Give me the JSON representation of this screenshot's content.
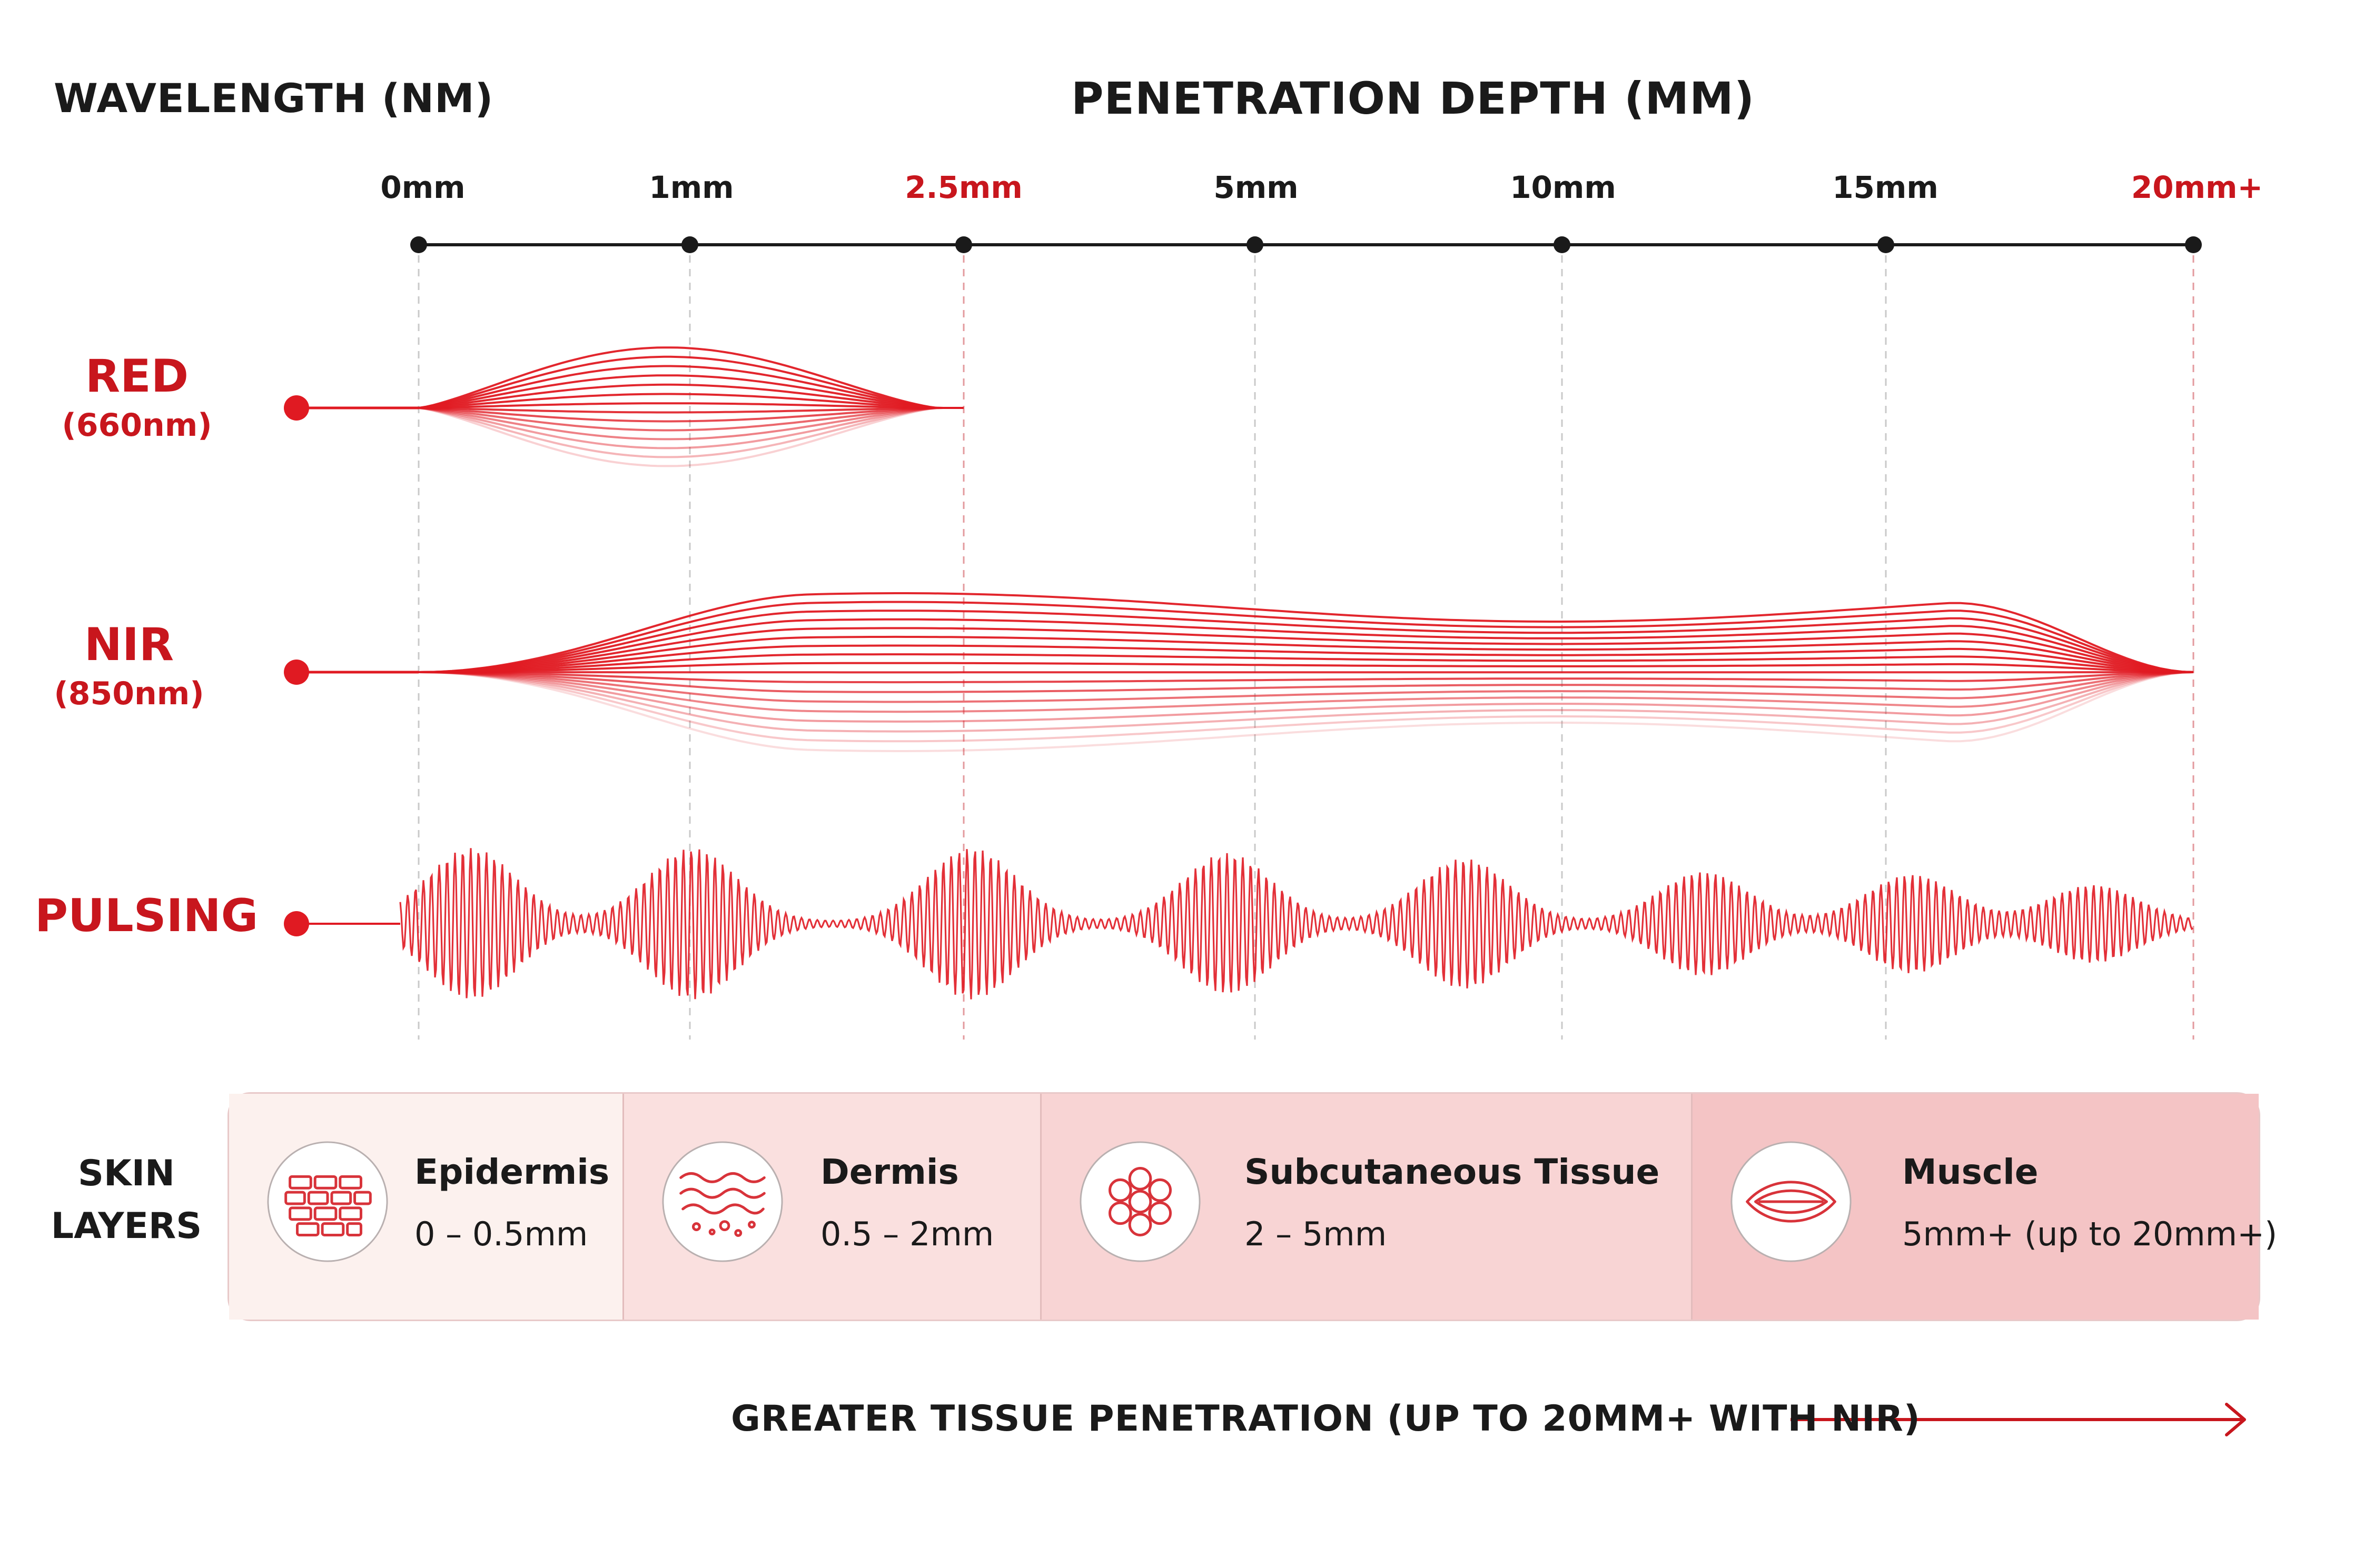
{
  "headers": {
    "wavelength": "WAVELENGTH (NM)",
    "depth": "PENETRATION DEPTH (MM)"
  },
  "depth_ticks": [
    {
      "label": "0mm",
      "highlight": false
    },
    {
      "label": "1mm",
      "highlight": false
    },
    {
      "label": "2.5mm",
      "highlight": true
    },
    {
      "label": "5mm",
      "highlight": false
    },
    {
      "label": "10mm",
      "highlight": false
    },
    {
      "label": "15mm",
      "highlight": false
    },
    {
      "label": "20mm+",
      "highlight": true
    }
  ],
  "wavelengths": [
    {
      "name": "RED",
      "nm": "(660nm)",
      "reach": "2.5mm"
    },
    {
      "name": "NIR",
      "nm": "(850nm)",
      "reach": "20mm+"
    },
    {
      "name": "PULSING",
      "nm": "",
      "reach": "20mm+"
    }
  ],
  "skin": {
    "heading_line1": "SKIN",
    "heading_line2": "LAYERS",
    "layers": [
      {
        "name": "Epidermis",
        "range": "0 – 0.5mm",
        "icon": "brick-cells-icon",
        "color": "#fcf1ee"
      },
      {
        "name": "Dermis",
        "range": "0.5 – 2mm",
        "icon": "wavy-layers-icon",
        "color": "#fae0df"
      },
      {
        "name": "Subcutaneous Tissue",
        "range": "2 – 5mm",
        "icon": "fat-cells-icon",
        "color": "#f8d4d4"
      },
      {
        "name": "Muscle",
        "range": "5mm+ (up to 20mm+)",
        "icon": "muscle-fiber-icon",
        "color": "#f4c4c5"
      }
    ]
  },
  "footer": "GREATER TISSUE PENETRATION (UP TO 20MM+ WITH NIR)",
  "colors": {
    "accent_red": "#c8161d",
    "wave_red": "#e01a22",
    "axis": "#1a1a1a",
    "arrow_blue": "#3a3aa8"
  }
}
